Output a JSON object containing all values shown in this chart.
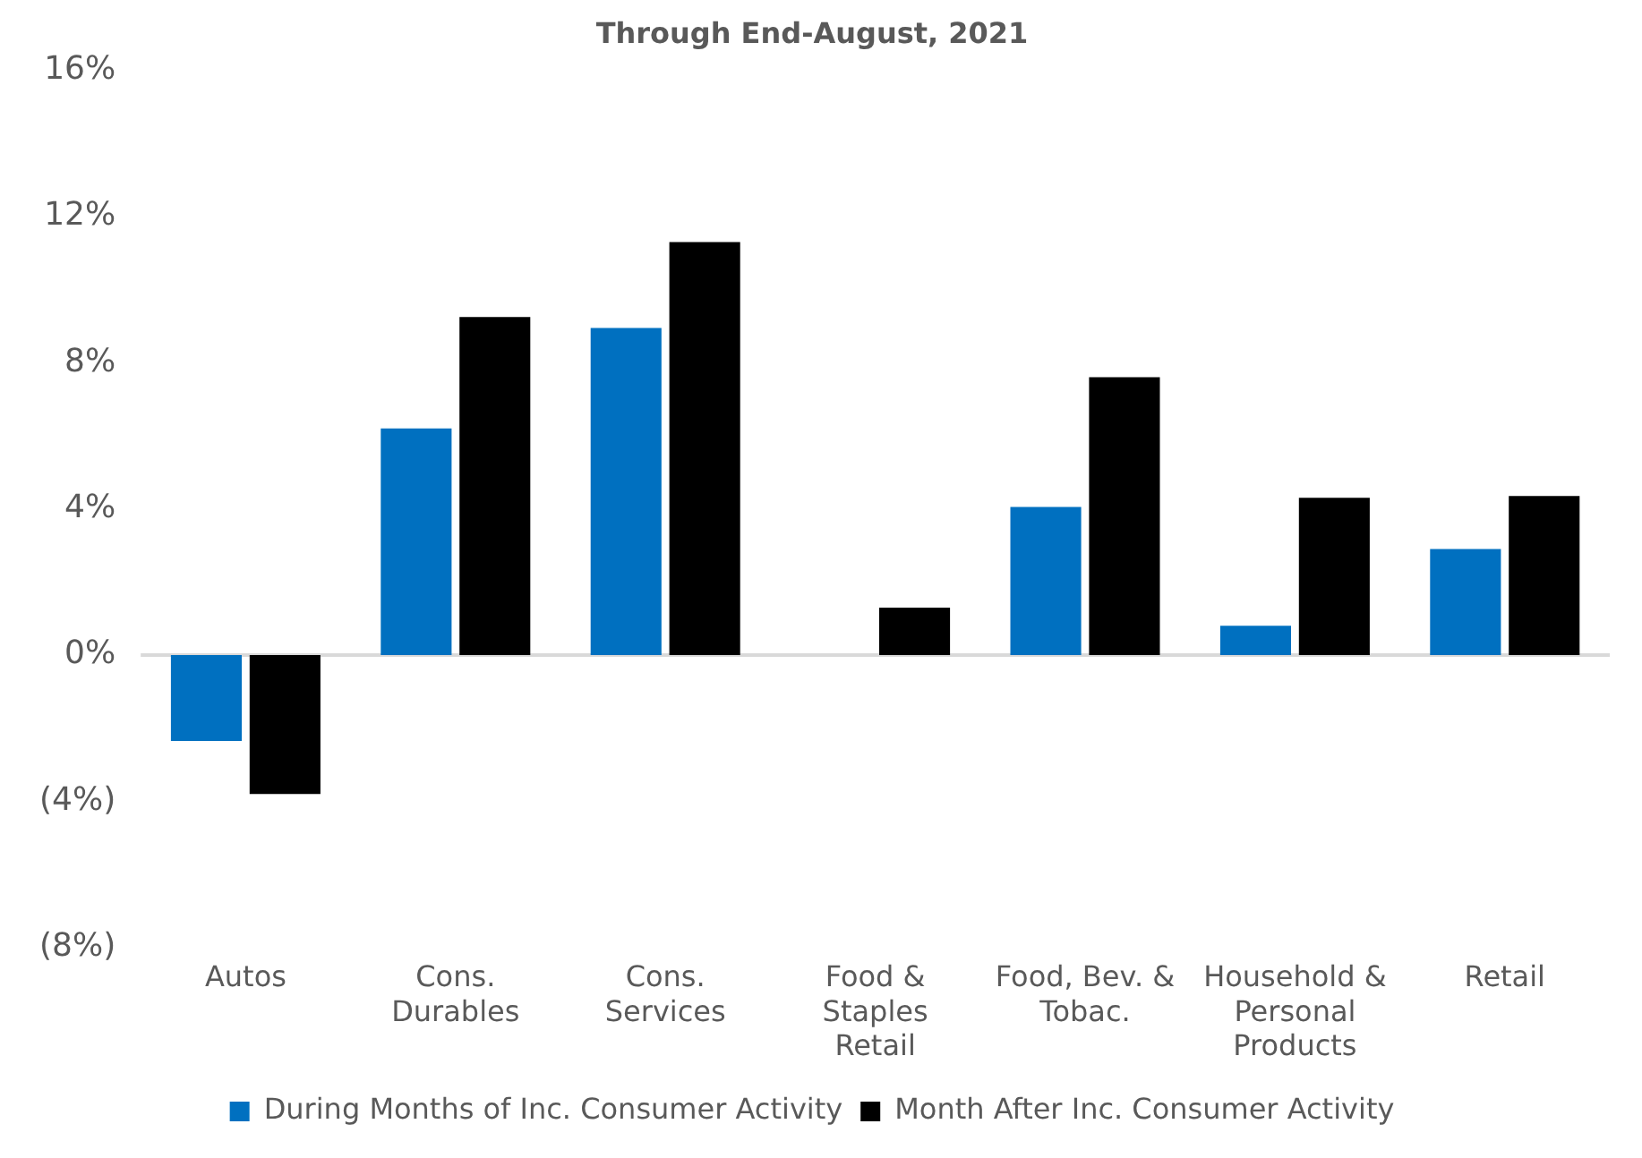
{
  "chart_data": {
    "type": "bar",
    "title": "Through End-August, 2021",
    "categories": [
      "Autos",
      "Cons. Durables",
      "Cons. Services",
      "Food & Staples Retail",
      "Food, Bev. & Tobac.",
      "Household & Personal Products",
      "Retail"
    ],
    "series": [
      {
        "name": "During Months of Inc. Consumer Activity",
        "color": "#0070c0",
        "values": [
          -2.35,
          6.2,
          8.95,
          0,
          4.05,
          0.8,
          2.9
        ]
      },
      {
        "name": "Month After Inc. Consumer Activity",
        "color": "#000000",
        "values": [
          -3.8,
          9.25,
          11.3,
          1.3,
          7.6,
          4.3,
          4.35
        ]
      }
    ],
    "ylim": [
      -8,
      16
    ],
    "yticks": [
      {
        "value": -8,
        "label": "(8%)"
      },
      {
        "value": -4,
        "label": "(4%)"
      },
      {
        "value": 0,
        "label": "0%"
      },
      {
        "value": 4,
        "label": "4%"
      },
      {
        "value": 8,
        "label": "8%"
      },
      {
        "value": 12,
        "label": "12%"
      },
      {
        "value": 16,
        "label": "16%"
      }
    ],
    "grid": false,
    "legend": "bottom",
    "ref_lines": [
      {
        "axis": "y",
        "value": 0,
        "color": "#d9d9d9"
      }
    ]
  }
}
